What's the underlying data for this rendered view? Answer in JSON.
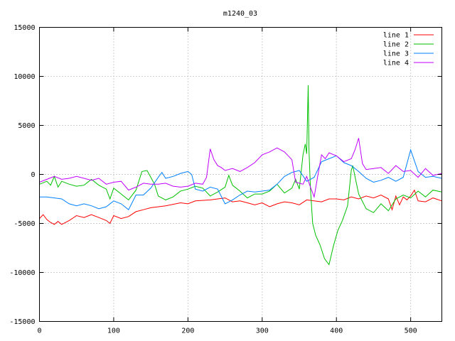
{
  "chart_data": {
    "type": "line",
    "title": "m1240_03",
    "xlabel": "",
    "ylabel": "",
    "xlim": [
      0,
      542
    ],
    "ylim": [
      -15000,
      15000
    ],
    "xticks": [
      0,
      100,
      200,
      300,
      400,
      500
    ],
    "yticks": [
      -15000,
      -10000,
      -5000,
      0,
      5000,
      10000,
      15000
    ],
    "grid": true,
    "legend_position": "top-right",
    "series": [
      {
        "name": "line 1",
        "color": "#ff0000",
        "x": [
          0,
          5,
          10,
          15,
          20,
          25,
          30,
          40,
          50,
          60,
          70,
          80,
          90,
          95,
          100,
          110,
          120,
          130,
          140,
          150,
          170,
          190,
          200,
          210,
          230,
          250,
          260,
          270,
          280,
          290,
          300,
          310,
          320,
          330,
          340,
          350,
          360,
          370,
          380,
          390,
          400,
          410,
          420,
          430,
          440,
          450,
          460,
          470,
          475,
          480,
          485,
          490,
          495,
          500,
          505,
          510,
          520,
          530,
          542
        ],
        "y": [
          -4500,
          -4100,
          -4600,
          -4900,
          -5100,
          -4800,
          -5100,
          -4700,
          -4200,
          -4400,
          -4100,
          -4400,
          -4700,
          -5000,
          -4200,
          -4500,
          -4300,
          -3800,
          -3600,
          -3400,
          -3200,
          -2900,
          -3000,
          -2700,
          -2600,
          -2400,
          -2800,
          -2700,
          -2900,
          -3100,
          -2900,
          -3300,
          -3000,
          -2800,
          -2900,
          -3100,
          -2600,
          -2700,
          -2800,
          -2500,
          -2500,
          -2600,
          -2300,
          -2500,
          -2200,
          -2400,
          -2100,
          -2500,
          -3600,
          -2200,
          -3100,
          -2300,
          -2600,
          -2200,
          -1600,
          -2700,
          -2800,
          -2400,
          -2700
        ]
      },
      {
        "name": "line 2",
        "color": "#00c000",
        "x": [
          0,
          10,
          15,
          20,
          25,
          30,
          40,
          50,
          60,
          70,
          80,
          90,
          95,
          100,
          110,
          120,
          130,
          138,
          145,
          150,
          155,
          160,
          170,
          180,
          190,
          200,
          210,
          220,
          230,
          240,
          250,
          255,
          260,
          270,
          280,
          290,
          300,
          310,
          320,
          330,
          340,
          345,
          350,
          355,
          358,
          360,
          362,
          363,
          365,
          368,
          372,
          378,
          384,
          390,
          396,
          402,
          408,
          415,
          420,
          422,
          425,
          430,
          440,
          450,
          460,
          470,
          480,
          490,
          500,
          510,
          520,
          530,
          542
        ],
        "y": [
          -1000,
          -700,
          -1100,
          -200,
          -1300,
          -700,
          -1000,
          -1200,
          -1100,
          -500,
          -1100,
          -1500,
          -2500,
          -1400,
          -2000,
          -2600,
          -1600,
          300,
          400,
          -300,
          -1000,
          -2200,
          -2600,
          -2300,
          -1700,
          -1500,
          -1200,
          -1400,
          -2200,
          -1800,
          -1300,
          -100,
          -1100,
          -1700,
          -2400,
          -2000,
          -2000,
          -1700,
          -1000,
          -1900,
          -1400,
          -500,
          -1500,
          2000,
          3100,
          2100,
          9100,
          2500,
          -1500,
          -5000,
          -6200,
          -7200,
          -8600,
          -9200,
          -7300,
          -5700,
          -4700,
          -3200,
          400,
          900,
          -200,
          -2000,
          -3500,
          -3900,
          -3000,
          -3700,
          -2500,
          -2100,
          -2400,
          -1700,
          -2300,
          -1600,
          -1800
        ]
      },
      {
        "name": "line 3",
        "color": "#0080ff",
        "x": [
          0,
          10,
          20,
          30,
          40,
          50,
          60,
          70,
          80,
          90,
          100,
          110,
          115,
          120,
          130,
          140,
          150,
          160,
          165,
          170,
          180,
          190,
          200,
          205,
          210,
          220,
          230,
          240,
          250,
          260,
          270,
          280,
          290,
          300,
          310,
          320,
          330,
          340,
          350,
          360,
          370,
          380,
          390,
          400,
          410,
          420,
          430,
          440,
          450,
          460,
          470,
          480,
          490,
          500,
          510,
          520,
          530,
          542
        ],
        "y": [
          -2300,
          -2300,
          -2400,
          -2500,
          -3000,
          -3200,
          -3000,
          -3200,
          -3500,
          -3300,
          -2700,
          -3000,
          -3300,
          -3600,
          -2100,
          -2100,
          -1400,
          -300,
          200,
          -400,
          -200,
          100,
          300,
          0,
          -1500,
          -1700,
          -1300,
          -1500,
          -3000,
          -2600,
          -2100,
          -1700,
          -1800,
          -1700,
          -1600,
          -1000,
          -200,
          200,
          400,
          -700,
          -300,
          1300,
          1600,
          1900,
          1200,
          900,
          300,
          -400,
          -800,
          -600,
          -300,
          -700,
          -300,
          2500,
          300,
          -300,
          -200,
          -400
        ]
      },
      {
        "name": "line 4",
        "color": "#c000ff",
        "x": [
          0,
          10,
          20,
          30,
          40,
          50,
          60,
          70,
          80,
          90,
          100,
          110,
          120,
          130,
          140,
          150,
          160,
          170,
          180,
          190,
          200,
          210,
          220,
          225,
          230,
          235,
          240,
          245,
          250,
          260,
          270,
          280,
          290,
          300,
          310,
          320,
          330,
          340,
          345,
          350,
          355,
          360,
          365,
          370,
          375,
          380,
          385,
          390,
          400,
          410,
          420,
          425,
          430,
          435,
          440,
          450,
          460,
          470,
          480,
          490,
          500,
          510,
          520,
          530,
          542
        ],
        "y": [
          -800,
          -500,
          -200,
          -500,
          -400,
          -200,
          -400,
          -600,
          -400,
          -1000,
          -800,
          -700,
          -1600,
          -1300,
          -900,
          -1000,
          -1000,
          -900,
          -1200,
          -1300,
          -1200,
          -900,
          -1000,
          -300,
          2600,
          1500,
          900,
          700,
          400,
          600,
          300,
          700,
          1200,
          2000,
          2300,
          2700,
          2300,
          1500,
          -800,
          -900,
          -1000,
          -200,
          -1300,
          -2300,
          -100,
          2000,
          1600,
          2200,
          1900,
          1300,
          1600,
          2500,
          3700,
          1100,
          500,
          600,
          700,
          100,
          900,
          300,
          400,
          -300,
          600,
          -100,
          100
        ]
      }
    ]
  }
}
